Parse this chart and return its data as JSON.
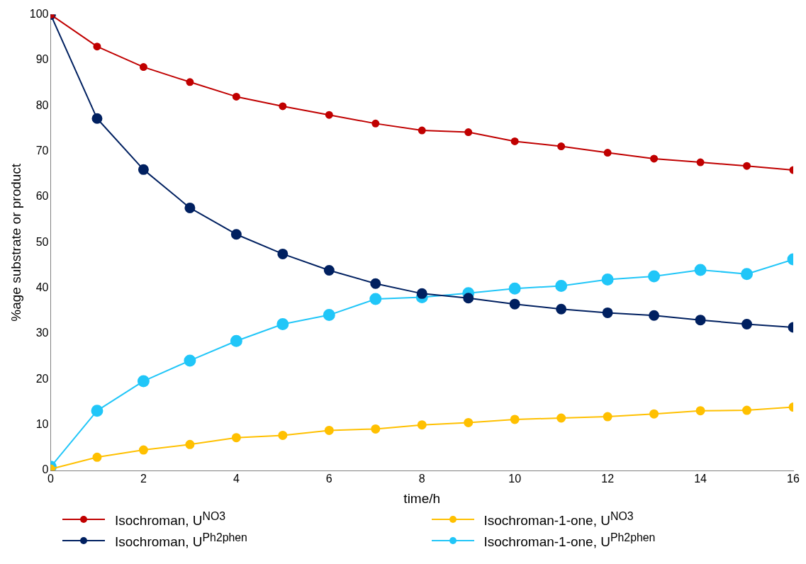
{
  "chart_data": {
    "type": "line",
    "xlabel": "time/h",
    "ylabel": "%age substrate or product",
    "x": [
      0,
      1,
      2,
      3,
      4,
      5,
      6,
      7,
      8,
      9,
      10,
      11,
      12,
      13,
      14,
      15,
      16
    ],
    "xlim": [
      0,
      16
    ],
    "xticks": [
      0,
      2,
      4,
      6,
      8,
      10,
      12,
      14,
      16
    ],
    "ylim": [
      0,
      100
    ],
    "yticks": [
      0,
      10,
      20,
      30,
      40,
      50,
      60,
      70,
      80,
      90,
      100
    ],
    "grid": false,
    "legend": "bottom",
    "marker": "circle",
    "line_style": "solid",
    "series": [
      {
        "name": "Isochroman, U$^{NO3}$",
        "color": "#c00000",
        "values": [
          100,
          93.0,
          88.5,
          85.2,
          82.0,
          79.9,
          78.0,
          76.1,
          74.6,
          74.2,
          72.2,
          71.1,
          69.7,
          68.4,
          67.6,
          66.8,
          65.9
        ]
      },
      {
        "name": "Isochroman-1-one, U$^{NO3}$",
        "color": "#ffc000",
        "values": [
          0.3,
          2.9,
          4.5,
          5.7,
          7.2,
          7.7,
          8.8,
          9.1,
          10.0,
          10.5,
          11.2,
          11.5,
          11.8,
          12.4,
          13.1,
          13.2,
          13.9
        ]
      },
      {
        "name": "Isochroman, U$^{Ph2phen}$",
        "color": "#002060",
        "values": [
          100,
          77.2,
          66.0,
          57.6,
          51.8,
          47.5,
          43.9,
          41.0,
          38.8,
          37.8,
          36.5,
          35.4,
          34.6,
          34.0,
          33.0,
          32.1,
          31.4
        ]
      },
      {
        "name": "Isochroman-1-one, U$^{Ph2phen}$",
        "color": "#21c6f8",
        "values": [
          0.8,
          13.1,
          19.6,
          24.1,
          28.4,
          32.1,
          34.1,
          37.6,
          38.0,
          38.9,
          39.9,
          40.5,
          41.9,
          42.6,
          44.0,
          43.1,
          46.3
        ]
      }
    ]
  }
}
